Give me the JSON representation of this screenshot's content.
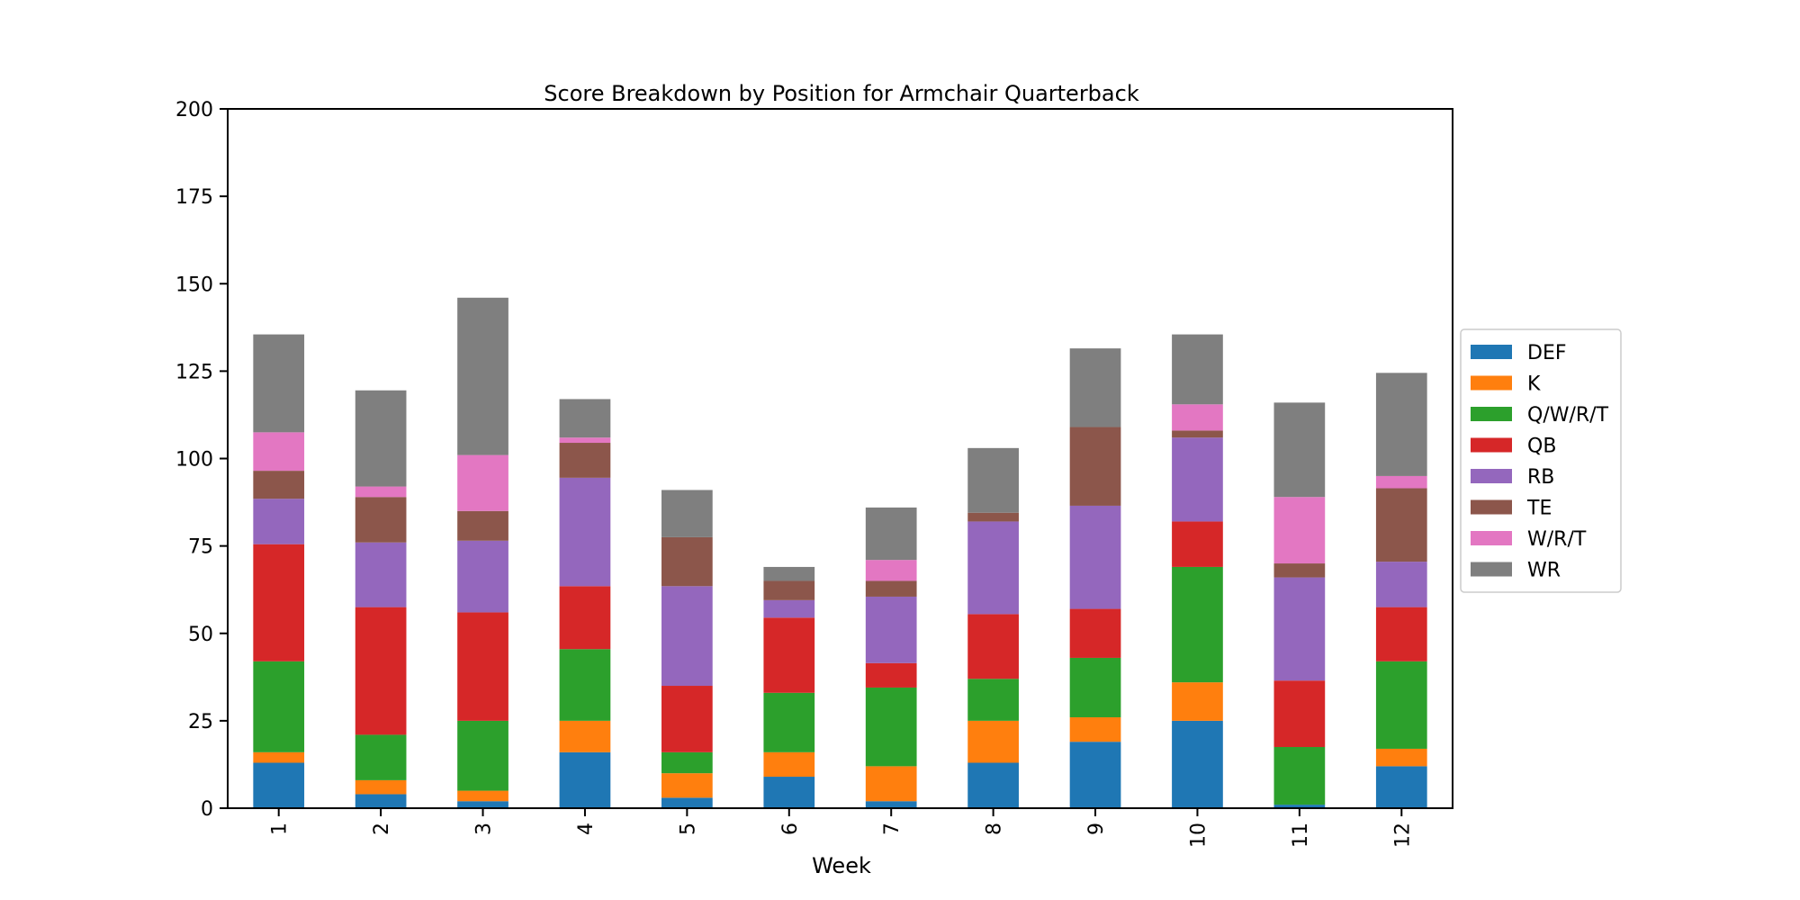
{
  "chart_data": {
    "type": "bar",
    "stacked": true,
    "title": "Score Breakdown by Position for Armchair Quarterback",
    "xlabel": "Week",
    "ylabel": "",
    "ylim": [
      0,
      200
    ],
    "yticks": [
      0,
      25,
      50,
      75,
      100,
      125,
      150,
      175,
      200
    ],
    "categories": [
      "1",
      "2",
      "3",
      "4",
      "5",
      "6",
      "7",
      "8",
      "9",
      "10",
      "11",
      "12"
    ],
    "legend_position": "right",
    "grid": false,
    "series": [
      {
        "name": "DEF",
        "color": "#1f77b4",
        "values": [
          13,
          4,
          2,
          16,
          3,
          9,
          2,
          13,
          19,
          25,
          1,
          12
        ]
      },
      {
        "name": "K",
        "color": "#ff7f0e",
        "values": [
          3,
          4,
          3,
          9,
          7,
          7,
          10,
          12,
          7,
          11,
          0,
          5
        ]
      },
      {
        "name": "Q/W/R/T",
        "color": "#2ca02c",
        "values": [
          26,
          13,
          20,
          20.5,
          6,
          17,
          22.5,
          12,
          17,
          33,
          16.5,
          25
        ]
      },
      {
        "name": "QB",
        "color": "#d62728",
        "values": [
          33.5,
          36.5,
          31,
          18,
          19,
          21.5,
          7,
          18.5,
          14,
          13,
          19,
          15.5
        ]
      },
      {
        "name": "RB",
        "color": "#9467bd",
        "values": [
          13,
          18.5,
          20.5,
          31,
          28.5,
          5,
          19,
          26.5,
          29.5,
          24,
          29.5,
          13
        ]
      },
      {
        "name": "TE",
        "color": "#8c564b",
        "values": [
          8,
          13,
          8.5,
          10,
          14,
          5.5,
          4.5,
          2.5,
          22.5,
          2,
          4,
          21
        ]
      },
      {
        "name": "W/R/T",
        "color": "#e377c2",
        "values": [
          11,
          3,
          16,
          1.5,
          0,
          0,
          6,
          0,
          0,
          7.5,
          19,
          3.5
        ]
      },
      {
        "name": "WR",
        "color": "#7f7f7f",
        "values": [
          28,
          27.5,
          45,
          11,
          13.5,
          4,
          15,
          18.5,
          22.5,
          20,
          27,
          29.5
        ]
      }
    ]
  }
}
